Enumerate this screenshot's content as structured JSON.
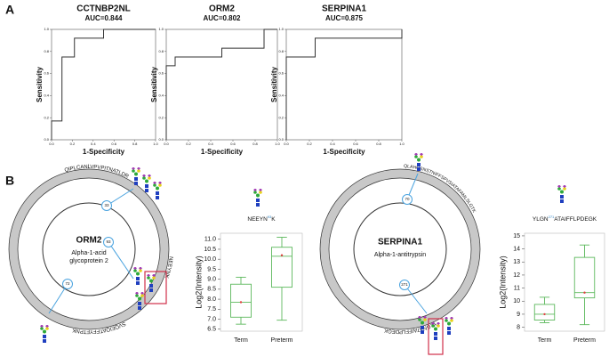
{
  "panel_labels": [
    "A",
    "B"
  ],
  "chart_data": [
    {
      "type": "line",
      "title": "CCTNBP2NL",
      "subtitle": "AUC=0.844",
      "xlabel": "1-Specificity",
      "ylabel": "Sensitivity",
      "x": [
        0,
        0,
        0.1,
        0.1,
        0.22,
        0.22,
        0.5,
        0.5,
        1
      ],
      "values": [
        0,
        0.17,
        0.17,
        0.75,
        0.75,
        0.92,
        0.92,
        1,
        1
      ],
      "color": "#333333",
      "xlim": [
        0,
        1
      ],
      "ylim": [
        0,
        1
      ],
      "xticks": [
        {
          "value": 0,
          "label": "0.0"
        },
        0.2,
        0.4,
        0.6,
        0.8,
        {
          "value": 1,
          "label": "1.0"
        }
      ],
      "yticks": [
        {
          "value": 0,
          "label": "0.0"
        },
        0.2,
        0.4,
        0.6,
        0.8,
        {
          "value": 1,
          "label": "1.0"
        }
      ]
    },
    {
      "type": "line",
      "title": "ORM2",
      "subtitle": "AUC=0.802",
      "xlabel": "1-Specificity",
      "ylabel": "Sensitivity",
      "x": [
        0,
        0,
        0.08,
        0.08,
        0.5,
        0.5,
        0.88,
        0.88,
        1
      ],
      "values": [
        0,
        0.67,
        0.67,
        0.75,
        0.75,
        0.83,
        0.83,
        1,
        1
      ],
      "color": "#333333",
      "xlim": [
        0,
        1
      ],
      "ylim": [
        0,
        1
      ],
      "xticks": [
        {
          "value": 0,
          "label": "0.0"
        },
        0.2,
        0.4,
        0.6,
        0.8,
        {
          "value": 1,
          "label": "1.0"
        }
      ],
      "yticks": [
        {
          "value": 0,
          "label": "0.0"
        },
        0.2,
        0.4,
        0.6,
        0.8,
        {
          "value": 1,
          "label": "1.0"
        }
      ]
    },
    {
      "type": "line",
      "title": "SERPINA1",
      "subtitle": "AUC=0.875",
      "xlabel": "1-Specificity",
      "ylabel": "Sensitivity",
      "x": [
        0,
        0,
        0.25,
        0.25,
        1,
        1
      ],
      "values": [
        0,
        0.75,
        0.75,
        0.92,
        0.92,
        1
      ],
      "color": "#333333",
      "xlim": [
        0,
        1
      ],
      "ylim": [
        0,
        1
      ],
      "xticks": [
        {
          "value": 0,
          "label": "0.0"
        },
        0.2,
        0.4,
        0.6,
        0.8,
        {
          "value": 1,
          "label": "1.0"
        }
      ],
      "yticks": [
        {
          "value": 0,
          "label": "0.0"
        },
        0.2,
        0.4,
        0.6,
        0.8,
        {
          "value": 1,
          "label": "1.0"
        }
      ]
    },
    {
      "type": "box",
      "annotation": {
        "text": "NEEYN",
        "site": "93",
        "suffix": "K"
      },
      "ylabel": "Log2(Intensity)",
      "categories": [
        "Term",
        "Preterm"
      ],
      "color": "#5cb85c",
      "mean_color": "#e04040",
      "boxes": [
        {
          "min": 6.75,
          "q1": 7.1,
          "median": 7.85,
          "q3": 8.75,
          "max": 9.1,
          "mean": 7.85
        },
        {
          "min": 6.95,
          "q1": 8.6,
          "median": 10.15,
          "q3": 10.6,
          "max": 11.1,
          "mean": 10.2
        }
      ],
      "ylim": [
        6.4,
        11.3
      ],
      "yticks": [
        6.5,
        {
          "value": 7,
          "label": "7.0"
        },
        7.5,
        {
          "value": 8,
          "label": "8.0"
        },
        8.5,
        {
          "value": 9,
          "label": "9.0"
        },
        9.5,
        {
          "value": 10,
          "label": "10.0"
        },
        10.5,
        {
          "value": 11,
          "label": "11.0"
        }
      ]
    },
    {
      "type": "box",
      "annotation": {
        "text": "YLGN",
        "site": "271",
        "suffix": "ATAIFFLPDEGK"
      },
      "ylabel": "Log2(Intensity)",
      "categories": [
        "Term",
        "Preterm"
      ],
      "color": "#5cb85c",
      "mean_color": "#e04040",
      "boxes": [
        {
          "min": 8.35,
          "q1": 8.55,
          "median": 9.0,
          "q3": 9.75,
          "max": 10.3,
          "mean": 9.0
        },
        {
          "min": 8.2,
          "q1": 10.25,
          "median": 10.65,
          "q3": 13.35,
          "max": 14.3,
          "mean": 10.65
        }
      ],
      "ylim": [
        7.7,
        15.2
      ],
      "yticks": [
        8,
        9,
        10,
        11,
        12,
        13,
        14,
        15
      ]
    }
  ],
  "diagrams": [
    {
      "protein": "ORM2",
      "description": [
        "Alpha-1-acid",
        "glycoprotein 2"
      ],
      "sites": [
        "33",
        "93",
        "72"
      ],
      "peptides": [
        "QIPLCANLVPVPITNATLDR",
        "NEEYNK",
        "SVQEIQATFFYFTPNK"
      ]
    },
    {
      "protein": "SERPINA1",
      "description": [
        "Alpha-1-antitrypsin"
      ],
      "sites": [
        "70",
        "271"
      ],
      "peptides": [
        "QLAHQSNSTNIFFSPVSIATAFAMLSLGTK",
        "YLGNATAIFFLPDEGK"
      ]
    }
  ]
}
